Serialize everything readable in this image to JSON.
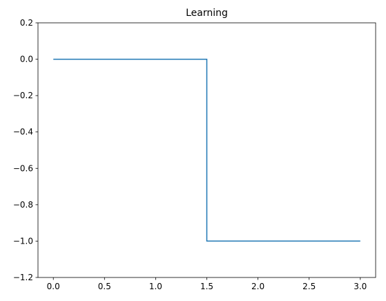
{
  "chart_data": {
    "type": "line",
    "title": "Learning",
    "xlabel": "",
    "ylabel": "",
    "xlim": [
      -0.15,
      3.15
    ],
    "ylim": [
      -1.2,
      0.2
    ],
    "xticks": [
      0.0,
      0.5,
      1.0,
      1.5,
      2.0,
      2.5,
      3.0
    ],
    "xtick_labels": [
      "0.0",
      "0.5",
      "1.0",
      "1.5",
      "2.0",
      "2.5",
      "3.0"
    ],
    "yticks": [
      0.2,
      0.0,
      -0.2,
      -0.4,
      -0.6,
      -0.8,
      -1.0,
      -1.2
    ],
    "ytick_labels": [
      "0.2",
      "0.0",
      "−0.2",
      "−0.4",
      "−0.6",
      "−0.8",
      "−1.0",
      "−1.2"
    ],
    "grid": false,
    "legend": "none",
    "series": [
      {
        "color": "#1f77b4",
        "x": [
          0.0,
          1.5,
          1.5,
          3.0
        ],
        "y": [
          0.0,
          0.0,
          -1.0,
          -1.0
        ]
      }
    ]
  }
}
